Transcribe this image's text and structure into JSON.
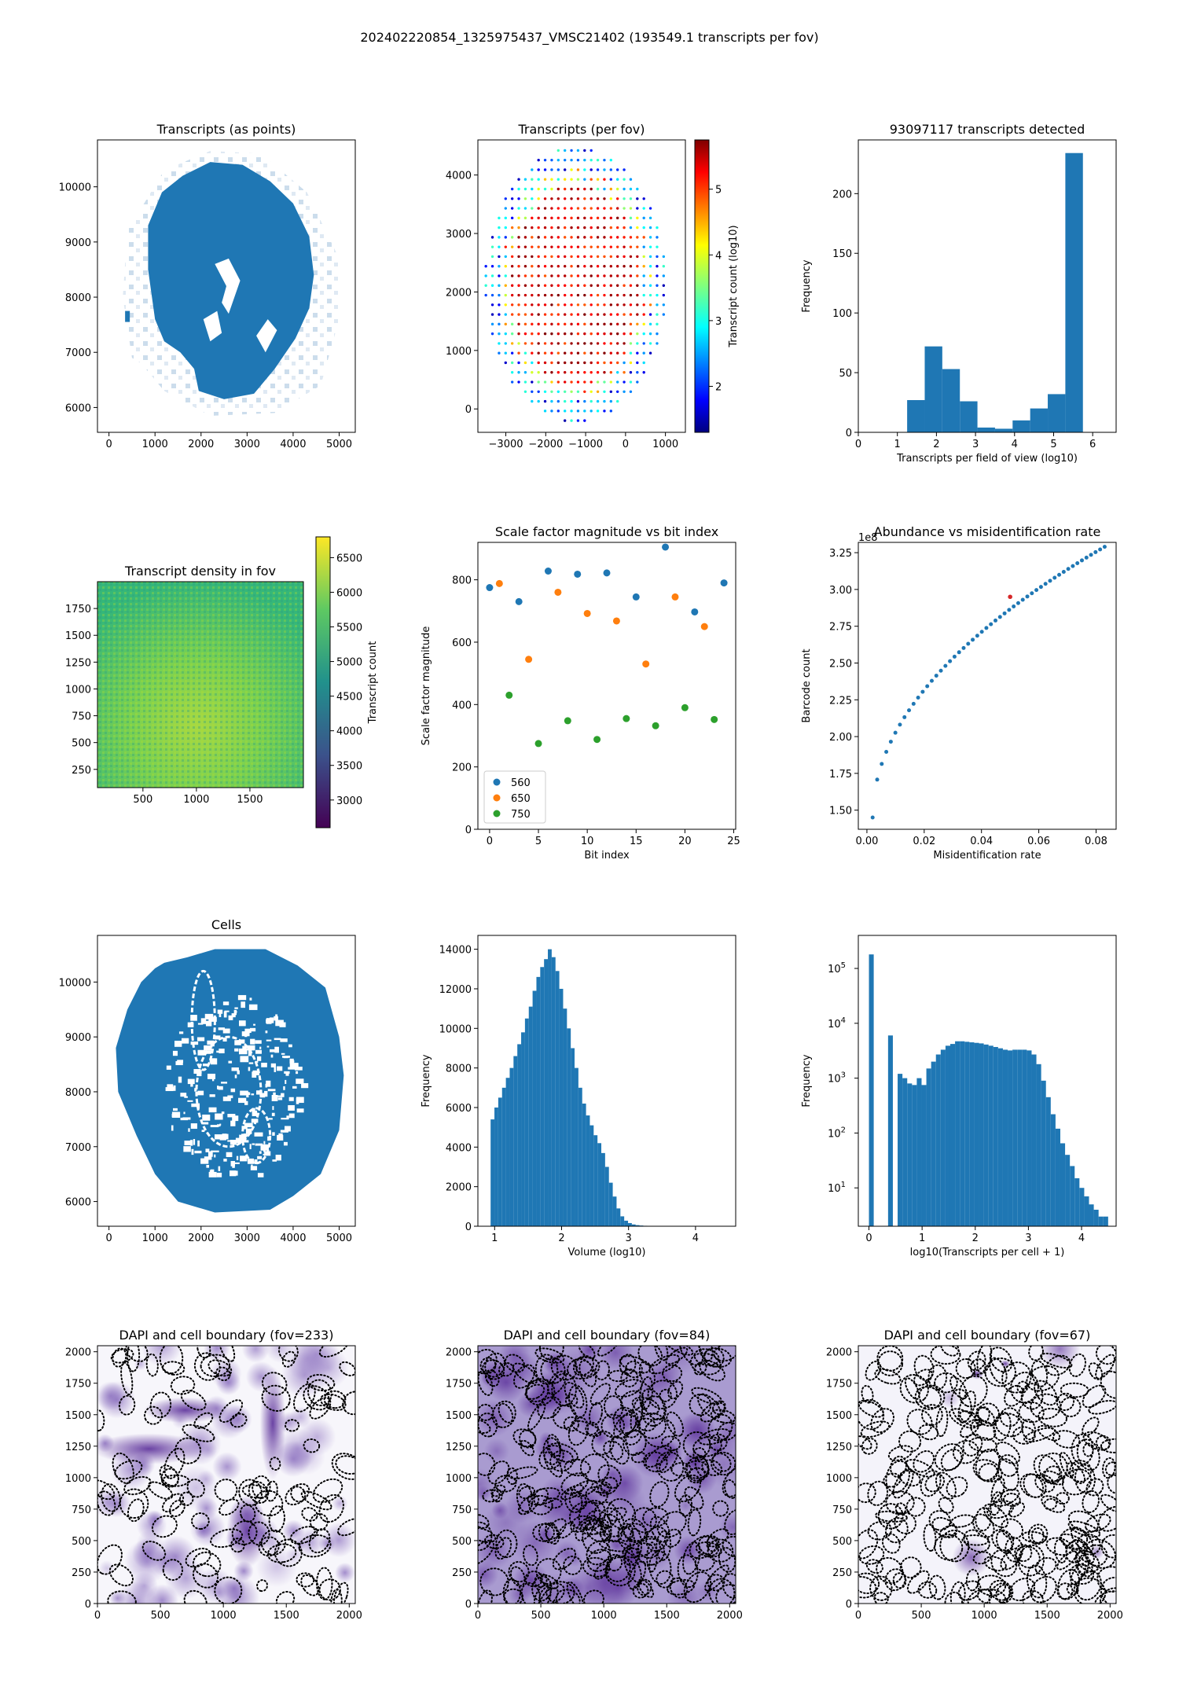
{
  "suptitle": "202402220854_1325975437_VMSC21402 (193549.1 transcripts per fov)",
  "chart_data": [
    {
      "id": "p1",
      "type": "scatter",
      "title": "Transcripts (as points)",
      "description_values": {
        "x_extent": [
          0,
          5000
        ],
        "y_extent": [
          5800,
          10700
        ]
      },
      "xlim": [
        -250,
        5350
      ],
      "ylim": [
        5550,
        10850
      ],
      "xticks": [
        0,
        1000,
        2000,
        3000,
        4000,
        5000
      ],
      "yticks": [
        6000,
        7000,
        8000,
        9000,
        10000
      ],
      "xlabel": "",
      "ylabel": "",
      "color": "#1f77b4"
    },
    {
      "id": "p2",
      "type": "scatter",
      "title": "Transcripts (per fov)",
      "xlim": [
        -3700,
        1500
      ],
      "ylim": [
        -400,
        4600
      ],
      "xticks": [
        -3000,
        -2000,
        -1000,
        0,
        1000
      ],
      "xticklabels": [
        "−3000",
        "−2000",
        "−1000",
        "0",
        "1000"
      ],
      "yticks": [
        0,
        1000,
        2000,
        3000,
        4000
      ],
      "colorbar": {
        "label": "Transcript count (log10)",
        "range": [
          1.3,
          5.75
        ],
        "ticks": [
          2,
          3,
          4,
          5
        ],
        "colormap": "jet"
      },
      "grid": {
        "x_range": [
          -3500,
          1000
        ],
        "y_range": [
          -200,
          4450
        ],
        "spacing": 165
      }
    },
    {
      "id": "p3",
      "type": "bar",
      "title": "93097117 transcripts detected",
      "xlabel": "Transcripts per field of view (log10)",
      "ylabel": "Frequency",
      "xlim": [
        0,
        6.6
      ],
      "ylim": [
        0,
        245
      ],
      "xticks": [
        0,
        1,
        2,
        3,
        4,
        5,
        6
      ],
      "yticks": [
        0,
        50,
        100,
        150,
        200
      ],
      "bin_edges": [
        1.25,
        1.7,
        2.15,
        2.6,
        3.05,
        3.5,
        3.95,
        4.4,
        4.85,
        5.3,
        5.75
      ],
      "values": [
        27,
        72,
        53,
        26,
        4,
        3,
        10,
        20,
        32,
        234
      ],
      "color": "#1f77b4"
    },
    {
      "id": "p4",
      "type": "heatmap",
      "title": "Transcript density in fov",
      "xlim": [
        75,
        2000
      ],
      "ylim": [
        80,
        2000
      ],
      "xticks": [
        500,
        1000,
        1500
      ],
      "yticks": [
        250,
        500,
        750,
        1000,
        1250,
        1500,
        1750
      ],
      "colorbar": {
        "label": "Transcript count",
        "range": [
          2600,
          6800
        ],
        "ticks": [
          3000,
          3500,
          4000,
          4500,
          5000,
          5500,
          6000,
          6500
        ],
        "colormap": "viridis"
      }
    },
    {
      "id": "p5",
      "type": "scatter",
      "title": "Scale factor magnitude vs bit index",
      "xlabel": "Bit index",
      "ylabel": "Scale factor magnitude",
      "xlim": [
        -1.2,
        25.2
      ],
      "ylim": [
        0,
        920
      ],
      "xticks": [
        0,
        5,
        10,
        15,
        20,
        25
      ],
      "yticks": [
        0,
        200,
        400,
        600,
        800
      ],
      "legend": "lower-left",
      "series": [
        {
          "name": "560",
          "color": "#1f77b4",
          "x": [
            0,
            3,
            6,
            9,
            12,
            15,
            18,
            21,
            24
          ],
          "y": [
            775,
            730,
            828,
            818,
            822,
            745,
            905,
            697,
            790
          ]
        },
        {
          "name": "650",
          "color": "#ff7f0e",
          "x": [
            1,
            4,
            7,
            10,
            13,
            16,
            19,
            22
          ],
          "y": [
            788,
            545,
            760,
            692,
            668,
            530,
            745,
            650
          ]
        },
        {
          "name": "750",
          "color": "#2ca02c",
          "x": [
            2,
            5,
            8,
            11,
            14,
            17,
            20,
            23
          ],
          "y": [
            430,
            275,
            348,
            288,
            355,
            332,
            390,
            352
          ]
        }
      ]
    },
    {
      "id": "p6",
      "type": "scatter",
      "title": "Abundance vs misidentification rate",
      "xlabel": "Misidentification rate",
      "ylabel": "Barcode count",
      "offset_label": "1e8",
      "xlim": [
        -0.003,
        0.087
      ],
      "ylim": [
        1.37,
        3.32
      ],
      "xticks": [
        0,
        0.02,
        0.04,
        0.06,
        0.08
      ],
      "xticklabels": [
        "0.00",
        "0.02",
        "0.04",
        "0.06",
        "0.08"
      ],
      "yticks": [
        1.5,
        1.75,
        2.0,
        2.25,
        2.5,
        2.75,
        3.0,
        3.25
      ],
      "yticklabels": [
        "1.50",
        "1.75",
        "2.00",
        "2.25",
        "2.50",
        "2.75",
        "3.00",
        "3.25"
      ],
      "x_range": [
        0.002,
        0.083
      ],
      "y_range": [
        1.45,
        3.29
      ],
      "highlight": {
        "x": 0.05,
        "y": 2.95,
        "color": "#d62728"
      },
      "color": "#1f77b4"
    },
    {
      "id": "p7",
      "type": "scatter",
      "title": "Cells",
      "xlim": [
        -250,
        5350
      ],
      "ylim": [
        5550,
        10850
      ],
      "xticks": [
        0,
        1000,
        2000,
        3000,
        4000,
        5000
      ],
      "yticks": [
        6000,
        7000,
        8000,
        9000,
        10000
      ],
      "color": "#1f77b4"
    },
    {
      "id": "p8",
      "type": "bar",
      "title": "",
      "xlabel": "Volume (log10)",
      "ylabel": "Frequency",
      "xlim": [
        0.75,
        4.6
      ],
      "ylim": [
        0,
        14700
      ],
      "xticks": [
        1,
        2,
        3,
        4
      ],
      "yticks": [
        0,
        2000,
        4000,
        6000,
        8000,
        10000,
        12000,
        14000
      ],
      "bin_start": 0.94,
      "bin_width": 0.057,
      "values": [
        5400,
        6000,
        6500,
        7000,
        7500,
        8000,
        8600,
        9200,
        9800,
        10500,
        11100,
        11900,
        12600,
        13100,
        13500,
        14000,
        13600,
        12900,
        12000,
        11000,
        10000,
        9000,
        8000,
        7000,
        6200,
        5600,
        5100,
        4600,
        4200,
        3700,
        3000,
        2200,
        1500,
        900,
        500,
        280,
        160,
        90,
        55,
        35,
        22,
        15,
        10,
        7,
        5,
        3
      ],
      "color": "#1f77b4"
    },
    {
      "id": "p9",
      "type": "bar",
      "title": "",
      "xlabel": "log10(Transcripts per cell + 1)",
      "ylabel": "Frequency",
      "yscale": "log",
      "xlim": [
        -0.2,
        4.65
      ],
      "ylim": [
        2,
        400000
      ],
      "xticks": [
        0,
        1,
        2,
        3,
        4
      ],
      "yticks": [
        10,
        100,
        1000,
        10000,
        100000
      ],
      "yticklabels": [
        "10",
        "10",
        "10",
        "10",
        "10"
      ],
      "ytick_exponents": [
        "1",
        "2",
        "3",
        "4",
        "5"
      ],
      "bin_start": 0.0,
      "bin_width": 0.09,
      "values": [
        180000,
        0,
        0,
        0,
        6000,
        0,
        1200,
        1000,
        800,
        750,
        1000,
        750,
        1500,
        2000,
        2700,
        3300,
        3900,
        4200,
        4700,
        4700,
        4600,
        4500,
        4400,
        4300,
        4100,
        3900,
        3700,
        3500,
        3300,
        3200,
        3300,
        3300,
        3300,
        3200,
        2700,
        1800,
        900,
        450,
        220,
        120,
        65,
        40,
        25,
        15,
        10,
        7,
        5,
        4,
        3,
        3
      ],
      "color": "#1f77b4"
    },
    {
      "id": "p10",
      "type": "heatmap",
      "title": "DAPI and cell boundary (fov=233)",
      "xlim": [
        0,
        2048
      ],
      "ylim": [
        0,
        2048
      ],
      "xticks": [
        0,
        500,
        1000,
        1500,
        2000
      ],
      "yticks": [
        0,
        250,
        500,
        750,
        1000,
        1250,
        1500,
        1750,
        2000
      ]
    },
    {
      "id": "p11",
      "type": "heatmap",
      "title": "DAPI and cell boundary (fov=84)",
      "xlim": [
        0,
        2048
      ],
      "ylim": [
        0,
        2048
      ],
      "xticks": [
        0,
        500,
        1000,
        1500,
        2000
      ],
      "yticks": [
        0,
        250,
        500,
        750,
        1000,
        1250,
        1500,
        1750,
        2000
      ]
    },
    {
      "id": "p12",
      "type": "heatmap",
      "title": "DAPI and cell boundary (fov=67)",
      "xlim": [
        0,
        2048
      ],
      "ylim": [
        0,
        2048
      ],
      "xticks": [
        0,
        500,
        1000,
        1500,
        2000
      ],
      "yticks": [
        0,
        250,
        500,
        750,
        1000,
        1250,
        1500,
        1750,
        2000
      ]
    }
  ]
}
